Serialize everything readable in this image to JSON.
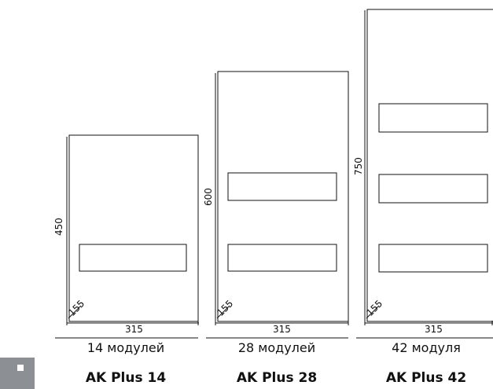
{
  "cabinets": [
    {
      "height_label": "450",
      "width_label": "315",
      "depth_label": "155",
      "modules": "14 модулей",
      "model": "AK Plus 14"
    },
    {
      "height_label": "600",
      "width_label": "315",
      "depth_label": "155",
      "modules": "28 модулей",
      "model": "AK Plus 28"
    },
    {
      "height_label": "750",
      "width_label": "315",
      "depth_label": "155",
      "modules": "42 модуля",
      "model": "AK Plus 42"
    }
  ],
  "corner_tab_icon": "grey-tab-icon"
}
